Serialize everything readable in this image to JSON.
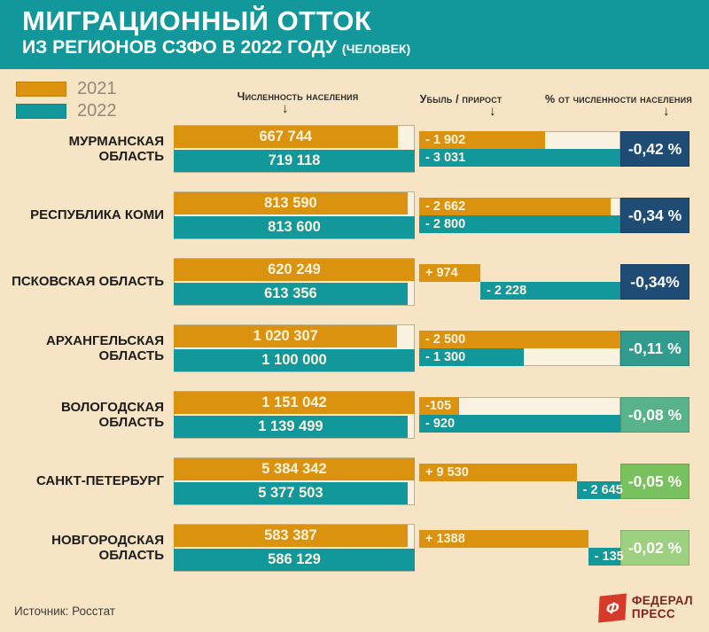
{
  "header": {
    "title": "МИГРАЦИОННЫЙ ОТТОК",
    "subtitle": "ИЗ РЕГИОНОВ СЗФО В 2022 ГОДУ",
    "subtitle_note": "(ЧЕЛОВЕК)"
  },
  "legend": {
    "items": [
      {
        "label": "2021",
        "color": "#db920e"
      },
      {
        "label": "2022",
        "color": "#12989b"
      }
    ]
  },
  "columns": {
    "population": "Численность населения",
    "change": "Убыль / прирост",
    "percent": "% от численности населения",
    "arrow": "↓"
  },
  "footer": {
    "source": "Источник: Росстат",
    "logo_letter": "Ф",
    "logo_line1": "ФЕДЕРАЛ",
    "logo_line2": "ПРЕСС"
  },
  "colors": {
    "background": "#f6e4c4",
    "banner": "#12989a",
    "bar_2021": "#db920e",
    "bar_2022": "#12989b",
    "track": "#faf2e1",
    "badge_dark_blue": "#1e4c74",
    "badge_teal": "#319c8e",
    "badge_seafoam": "#58b38b",
    "badge_green": "#79c05e",
    "badge_light_green": "#9ed081",
    "logo_red": "#d63b2a"
  },
  "chart_data": {
    "type": "bar",
    "title": "МИГРАЦИОННЫЙ ОТТОК ИЗ РЕГИОНОВ СЗФО В 2022 ГОДУ (ЧЕЛОВЕК)",
    "series_years": [
      "2021",
      "2022"
    ],
    "column_groups": [
      "Численность населения",
      "Убыль / прирост",
      "% от численности населения"
    ],
    "rows": [
      {
        "region": "МУРМАНСКАЯ ОБЛАСТЬ",
        "population_2021": 667744,
        "population_2021_label": "667 744",
        "population_2022": 719118,
        "population_2022_label": "719 118",
        "change_2021": -1902,
        "change_2021_label": "- 1 902",
        "change_2022": -3031,
        "change_2022_label": "- 3 031",
        "percent": -0.42,
        "percent_label": "-0,42 %",
        "badge_color": "#1e4c74"
      },
      {
        "region": "РЕСПУБЛИКА КОМИ",
        "population_2021": 813590,
        "population_2021_label": "813 590",
        "population_2022": 813600,
        "population_2022_label": "813 600",
        "change_2021": -2662,
        "change_2021_label": "- 2 662",
        "change_2022": -2800,
        "change_2022_label": "- 2 800",
        "percent": -0.34,
        "percent_label": "-0,34 %",
        "badge_color": "#1e4c74"
      },
      {
        "region": "ПСКОВСКАЯ ОБЛАСТЬ",
        "population_2021": 620249,
        "population_2021_label": "620 249",
        "population_2022": 613356,
        "population_2022_label": "613 356",
        "change_2021": 974,
        "change_2021_label": "+ 974",
        "change_2022": -2228,
        "change_2022_label": "- 2 228",
        "percent": -0.34,
        "percent_label": "-0,34%",
        "badge_color": "#1e4c74"
      },
      {
        "region": "АРХАНГЕЛЬСКАЯ ОБЛАСТЬ",
        "population_2021": 1020307,
        "population_2021_label": "1 020 307",
        "population_2022": 1100000,
        "population_2022_label": "1 100 000",
        "change_2021": -2500,
        "change_2021_label": "- 2 500",
        "change_2022": -1300,
        "change_2022_label": "- 1 300",
        "percent": -0.11,
        "percent_label": "-0,11 %",
        "badge_color": "#319c8e"
      },
      {
        "region": "ВОЛОГОДСКАЯ ОБЛАСТЬ",
        "population_2021": 1151042,
        "population_2021_label": "1 151 042",
        "population_2022": 1139499,
        "population_2022_label": "1 139 499",
        "change_2021": -105,
        "change_2021_label": "-105",
        "change_2022": -920,
        "change_2022_label": "- 920",
        "percent": -0.08,
        "percent_label": "-0,08 %",
        "badge_color": "#58b38b"
      },
      {
        "region": "САНКТ-ПЕТЕРБУРГ",
        "population_2021": 5384342,
        "population_2021_label": "5 384 342",
        "population_2022": 5377503,
        "population_2022_label": "5 377 503",
        "change_2021": 9530,
        "change_2021_label": "+ 9 530",
        "change_2022": -2645,
        "change_2022_label": "- 2 645",
        "percent": -0.05,
        "percent_label": "-0,05 %",
        "badge_color": "#79c05e"
      },
      {
        "region": "НОВГОРОДСКАЯ ОБЛАСТЬ",
        "population_2021": 583387,
        "population_2021_label": "583 387",
        "population_2022": 586129,
        "population_2022_label": "586 129",
        "change_2021": 1388,
        "change_2021_label": "+ 1388",
        "change_2022": -135,
        "change_2022_label": "- 135",
        "percent": -0.02,
        "percent_label": "-0,02 %",
        "badge_color": "#9ed081"
      }
    ]
  }
}
